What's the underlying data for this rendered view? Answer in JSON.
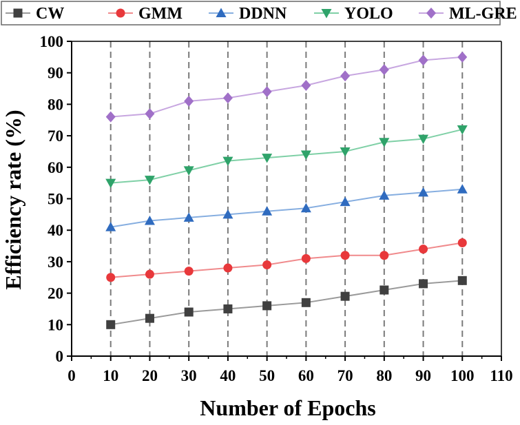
{
  "chart_data": {
    "type": "line",
    "title": "",
    "xlabel": "Number of Epochs",
    "ylabel": "Efficiency rate (%)",
    "xlim": [
      0,
      110
    ],
    "ylim": [
      0,
      100
    ],
    "xticks": [
      0,
      10,
      20,
      30,
      40,
      50,
      60,
      70,
      80,
      90,
      100,
      110
    ],
    "yticks": [
      0,
      10,
      20,
      30,
      40,
      50,
      60,
      70,
      80,
      90,
      100
    ],
    "grid": "vertical dashed at data x positions",
    "legend_position": "top",
    "x": [
      10,
      20,
      30,
      40,
      50,
      60,
      70,
      80,
      90,
      100
    ],
    "series": [
      {
        "name": "CW",
        "marker": "square",
        "color": "#404040",
        "line_color": "#9a9a9a",
        "values": [
          10,
          12,
          14,
          15,
          16,
          17,
          19,
          21,
          23,
          24
        ]
      },
      {
        "name": "GMM",
        "marker": "circle",
        "color": "#e8383b",
        "line_color": "#f08a8c",
        "values": [
          25,
          26,
          27,
          28,
          29,
          31,
          32,
          32,
          34,
          36
        ]
      },
      {
        "name": "DDNN",
        "marker": "triangle-up",
        "color": "#2f6bbf",
        "line_color": "#86aee0",
        "values": [
          41,
          43,
          44,
          45,
          46,
          47,
          49,
          51,
          52,
          53
        ]
      },
      {
        "name": "YOLO",
        "marker": "triangle-down",
        "color": "#2fa36a",
        "line_color": "#7fd0a6",
        "values": [
          55,
          56,
          59,
          62,
          63,
          64,
          65,
          68,
          69,
          72
        ]
      },
      {
        "name": "ML-GRE",
        "marker": "diamond",
        "color": "#a070c8",
        "line_color": "#c7a6e0",
        "values": [
          76,
          77,
          81,
          82,
          84,
          86,
          89,
          91,
          94,
          95
        ]
      }
    ]
  }
}
